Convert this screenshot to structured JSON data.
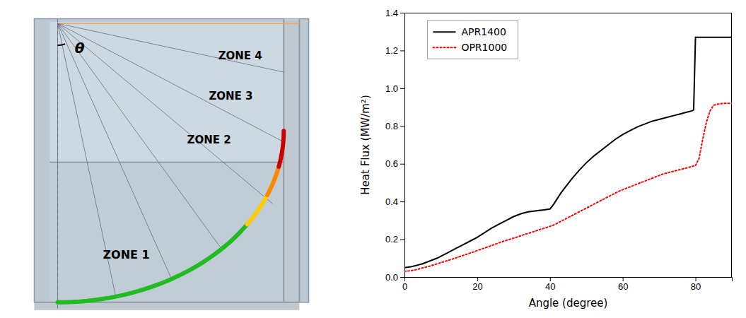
{
  "chart_data": {
    "type": "line",
    "xlabel": "Angle (degree)",
    "ylabel": "Heat Flux (MW/m²)",
    "xlim": [
      0,
      90
    ],
    "ylim": [
      0,
      1.4
    ],
    "xticks": [
      0,
      20,
      40,
      60,
      80
    ],
    "yticks": [
      {
        "value": 0,
        "label": "0.0"
      },
      0.2,
      0.4,
      0.6,
      0.8,
      {
        "value": 1,
        "label": "1.0"
      },
      1.2,
      1.4
    ],
    "legend": "upper left",
    "series": [
      {
        "name": "APR1400",
        "color": "#000000",
        "line_style": "solid",
        "x": [
          0,
          1,
          2,
          3,
          4,
          5,
          7,
          9,
          10,
          12,
          14,
          16,
          18,
          20,
          22,
          24,
          26,
          28,
          30,
          32,
          34,
          36,
          38,
          40,
          41,
          42,
          43,
          44,
          46,
          48,
          50,
          52,
          54,
          56,
          58,
          60,
          62,
          64,
          66,
          68,
          70,
          72,
          74,
          76,
          77,
          78,
          79,
          79.5,
          80,
          81,
          82,
          83,
          84,
          85,
          86,
          87,
          88,
          89,
          90
        ],
        "values": [
          0.05,
          0.052,
          0.055,
          0.06,
          0.065,
          0.07,
          0.085,
          0.1,
          0.11,
          0.13,
          0.15,
          0.17,
          0.19,
          0.21,
          0.235,
          0.26,
          0.28,
          0.3,
          0.32,
          0.335,
          0.345,
          0.35,
          0.355,
          0.36,
          0.385,
          0.415,
          0.445,
          0.47,
          0.52,
          0.565,
          0.605,
          0.64,
          0.67,
          0.7,
          0.73,
          0.755,
          0.775,
          0.795,
          0.81,
          0.825,
          0.835,
          0.845,
          0.855,
          0.865,
          0.87,
          0.875,
          0.88,
          0.885,
          1.27,
          1.27,
          1.27,
          1.27,
          1.27,
          1.27,
          1.27,
          1.27,
          1.27,
          1.27,
          1.27
        ]
      },
      {
        "name": "OPR1000",
        "color": "#ff0000",
        "line_style": "dotted",
        "x": [
          0,
          1,
          2,
          3,
          5,
          7,
          9,
          11,
          13,
          15,
          17,
          19,
          21,
          23,
          25,
          27,
          29,
          31,
          33,
          35,
          37,
          39,
          41,
          43,
          45,
          47,
          49,
          51,
          53,
          55,
          57,
          59,
          61,
          63,
          65,
          67,
          69,
          71,
          73,
          75,
          76,
          77,
          78,
          79,
          80,
          81,
          82,
          83,
          84,
          85,
          86,
          87,
          88,
          89,
          90
        ],
        "values": [
          0.03,
          0.032,
          0.034,
          0.038,
          0.048,
          0.058,
          0.07,
          0.082,
          0.094,
          0.107,
          0.12,
          0.133,
          0.147,
          0.16,
          0.174,
          0.188,
          0.2,
          0.212,
          0.225,
          0.237,
          0.25,
          0.262,
          0.275,
          0.295,
          0.315,
          0.335,
          0.355,
          0.375,
          0.395,
          0.415,
          0.435,
          0.455,
          0.47,
          0.485,
          0.5,
          0.515,
          0.53,
          0.545,
          0.555,
          0.565,
          0.57,
          0.575,
          0.58,
          0.585,
          0.59,
          0.63,
          0.73,
          0.82,
          0.88,
          0.91,
          0.915,
          0.918,
          0.92,
          0.92,
          0.92
        ]
      }
    ],
    "annotations": [
      {
        "text": "ZONE 1",
        "color": "#22bb22"
      },
      {
        "text": "ZONE 2",
        "color": "#ffcc00"
      },
      {
        "text": "ZONE 3",
        "color": "#ff8800"
      },
      {
        "text": "ZONE 4",
        "color": "#cc0000"
      },
      {
        "text": "θ"
      }
    ]
  }
}
